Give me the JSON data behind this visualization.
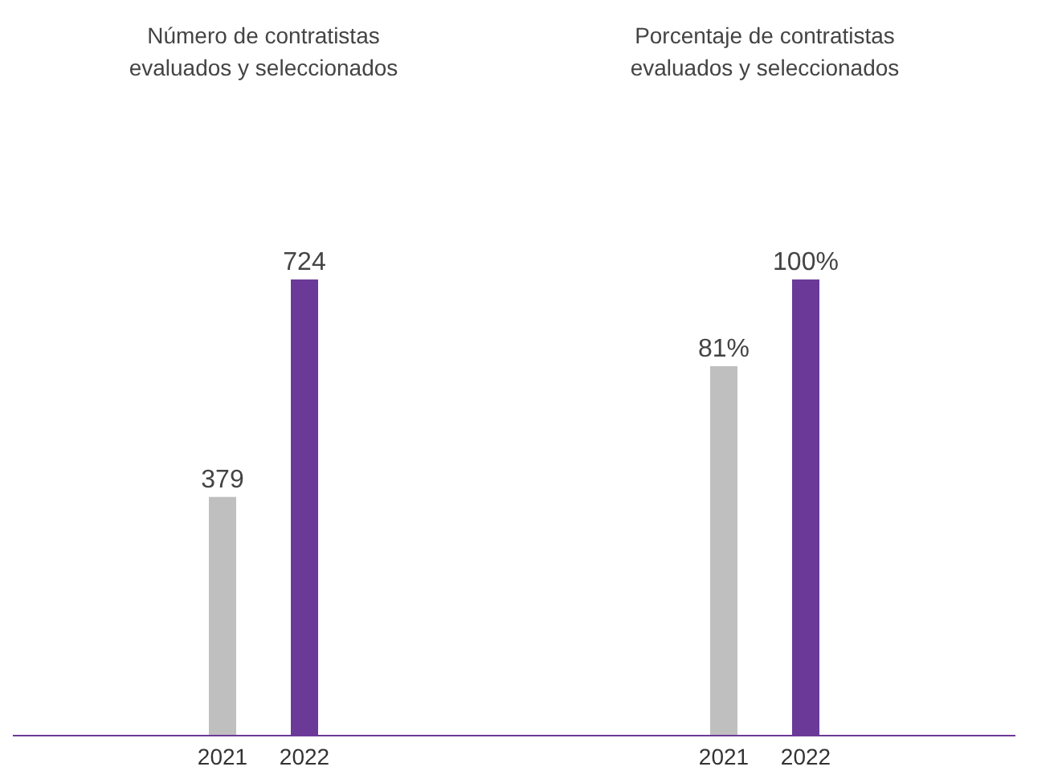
{
  "chart_data": [
    {
      "type": "bar",
      "title": "Número de contratistas evaluados y seleccionados",
      "categories": [
        "2021",
        "2022"
      ],
      "values": [
        379,
        724
      ],
      "colors": [
        "#c0bfc0",
        "#6b3a98"
      ],
      "data_labels": true
    },
    {
      "type": "bar",
      "title": "Porcentaje de contratistas evaluados y seleccionados",
      "categories": [
        "2021",
        "2022"
      ],
      "values": [
        81,
        100
      ],
      "colors": [
        "#c0bfc0",
        "#6b3a98"
      ],
      "value_labels": [
        "81%",
        "100%"
      ]
    }
  ]
}
